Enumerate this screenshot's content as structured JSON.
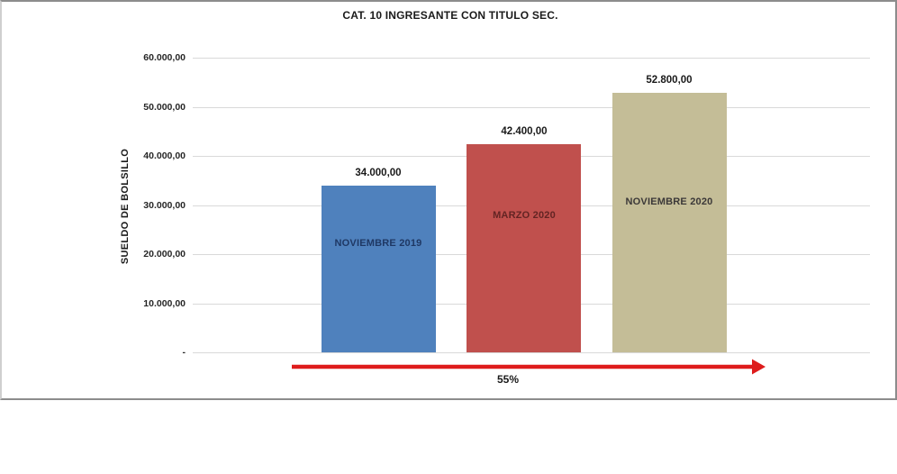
{
  "chart_data": {
    "type": "bar",
    "title": "CAT. 10 INGRESANTE CON TITULO SEC.",
    "xlabel": "",
    "ylabel": "SUELDO DE BOLSILLO",
    "categories": [
      "NOVIEMBRE 2019",
      "MARZO 2020",
      "NOVIEMBRE 2020"
    ],
    "values": [
      34000,
      42400,
      52800
    ],
    "value_labels": [
      "34.000,00",
      "42.400,00",
      "52.800,00"
    ],
    "bar_colors": [
      "#4f81bd",
      "#c0504d",
      "#c4bd97"
    ],
    "category_label_colors": [
      "#1f3864",
      "#632423",
      "#3b3838"
    ],
    "ylim": [
      0,
      60000
    ],
    "ytick_step": 10000,
    "ytick_labels": [
      "-",
      "10.000,00",
      "20.000,00",
      "30.000,00",
      "40.000,00",
      "50.000,00",
      "60.000,00"
    ],
    "grid": true,
    "legend": false,
    "annotations": [
      {
        "type": "arrow",
        "direction": "right",
        "label": "55%",
        "color": "#de1c1c"
      }
    ]
  }
}
